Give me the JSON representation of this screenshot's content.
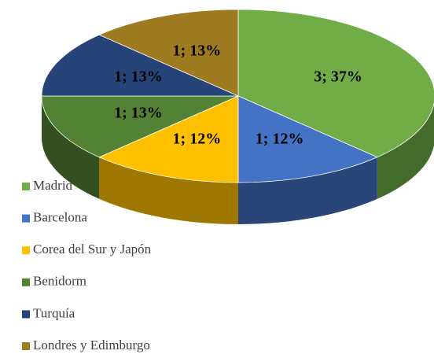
{
  "chart_data": {
    "type": "pie3d",
    "categories": [
      "Madrid",
      "Barcelona",
      "Corea del Sur y Japón",
      "Benidorm",
      "Turquía",
      "Londres y Edimburgo"
    ],
    "values": [
      3,
      1,
      1,
      1,
      1,
      1
    ],
    "value_labels": [
      "3; 37%",
      "1; 12%",
      "1; 12%",
      "1; 13%",
      "1; 13%",
      "1; 13%"
    ],
    "colors": [
      "#70ad47",
      "#4472c4",
      "#ffc000",
      "#548235",
      "#264478",
      "#9e7b21"
    ],
    "legend": "left"
  }
}
